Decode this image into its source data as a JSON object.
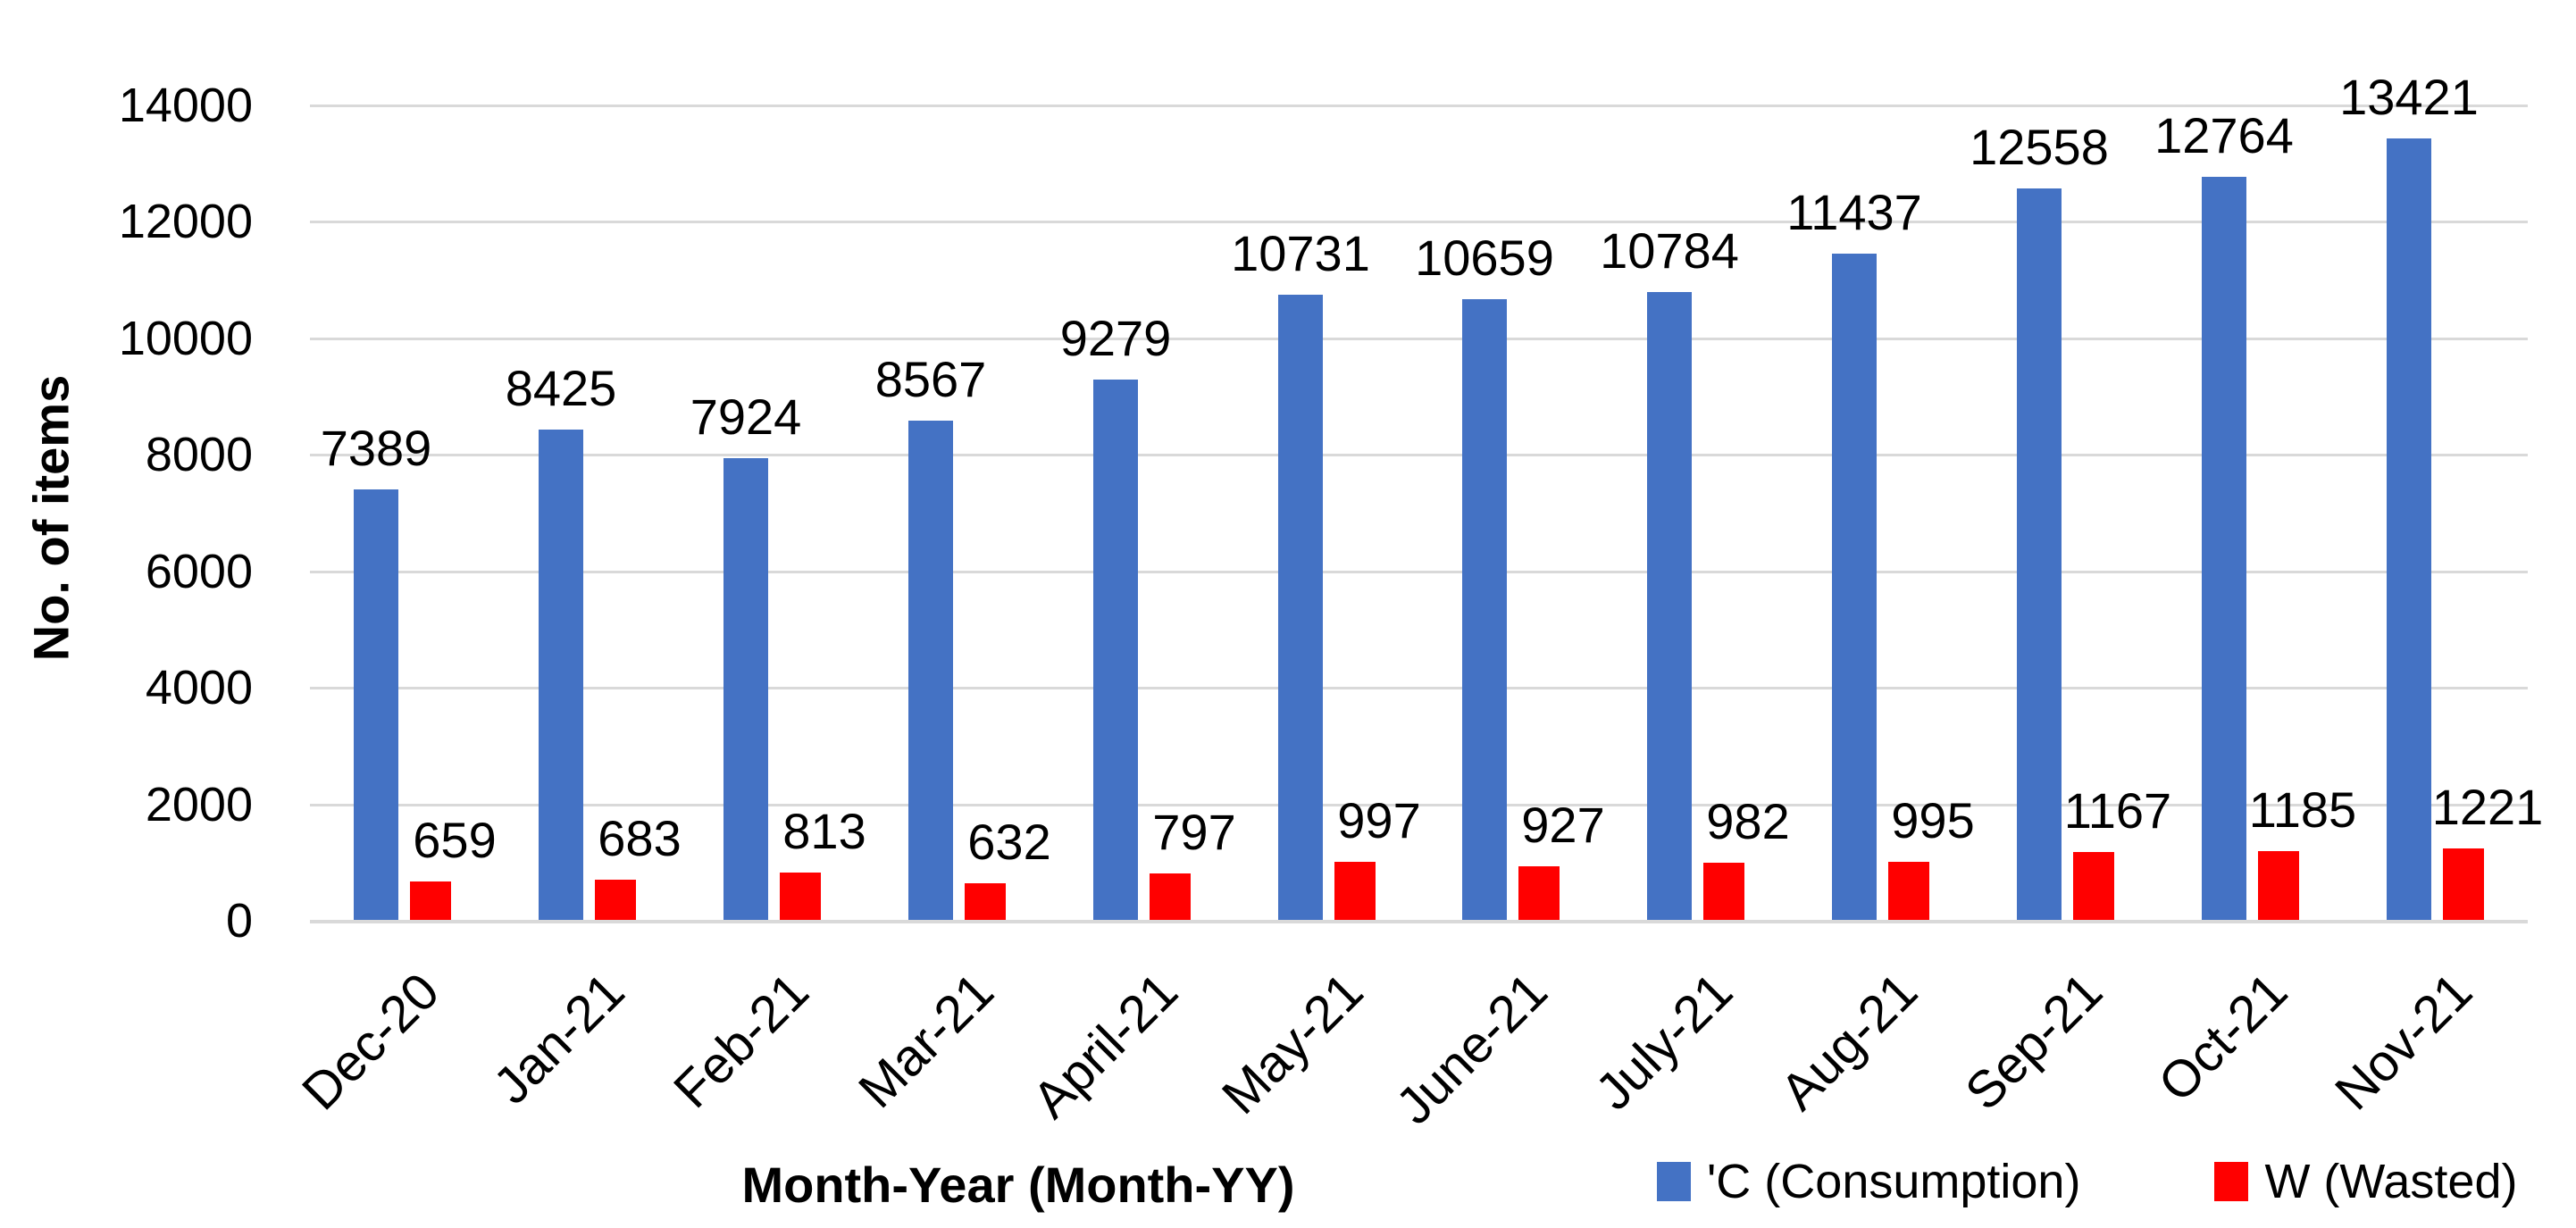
{
  "chart_data": {
    "type": "bar",
    "title": "",
    "categories": [
      "Dec-20",
      "Jan-21",
      "Feb-21",
      "Mar-21",
      "April-21",
      "May-21",
      "June-21",
      "July-21",
      "Aug-21",
      "Sep-21",
      "Oct-21",
      "Nov-21"
    ],
    "series": [
      {
        "name": "'C (Consumption)",
        "color": "#4472C4",
        "values": [
          7389,
          8425,
          7924,
          8567,
          9279,
          10731,
          10659,
          10784,
          11437,
          12558,
          12764,
          13421
        ]
      },
      {
        "name": "W (Wasted)",
        "color": "#FF0000",
        "values": [
          659,
          683,
          813,
          632,
          797,
          997,
          927,
          982,
          995,
          1167,
          1185,
          1221
        ]
      }
    ],
    "xlabel": "Month-Year (Month-YY)",
    "ylabel": "No. of items",
    "ylim": [
      0,
      14000
    ],
    "yticks": [
      0,
      2000,
      4000,
      6000,
      8000,
      10000,
      12000,
      14000
    ],
    "grid": true,
    "data_labels": true,
    "legend_position": "bottom-right",
    "gridline_color": "#D9D9D9",
    "axis_line_color": "#D9D9D9",
    "background_color": "#FFFFFF",
    "text_color": "#000000"
  }
}
